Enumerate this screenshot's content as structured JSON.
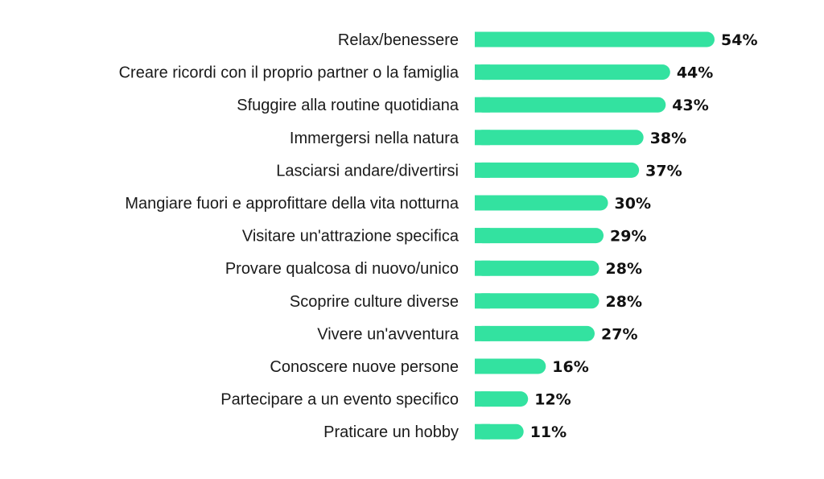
{
  "chart_data": {
    "type": "bar",
    "orientation": "horizontal",
    "categories": [
      "Relax/benessere",
      "Creare ricordi con il proprio partner o la famiglia",
      "Sfuggire alla routine quotidiana",
      "Immergersi nella natura",
      "Lasciarsi andare/divertirsi",
      "Mangiare fuori e approfittare della vita notturna",
      "Visitare un'attrazione specifica",
      "Provare qualcosa di nuovo/unico",
      "Scoprire culture diverse",
      "Vivere un'avventura",
      "Conoscere nuove persone",
      "Partecipare a un evento specifico",
      "Praticare un hobby"
    ],
    "values": [
      54,
      44,
      43,
      38,
      37,
      30,
      29,
      28,
      28,
      27,
      16,
      12,
      11
    ],
    "value_labels": [
      "54%",
      "44%",
      "43%",
      "38%",
      "37%",
      "30%",
      "29%",
      "28%",
      "28%",
      "27%",
      "16%",
      "12%",
      "11%"
    ],
    "unit": "%",
    "xlim": [
      0,
      54
    ],
    "bar_color": "#33e2a0",
    "grid": false,
    "legend": false
  }
}
